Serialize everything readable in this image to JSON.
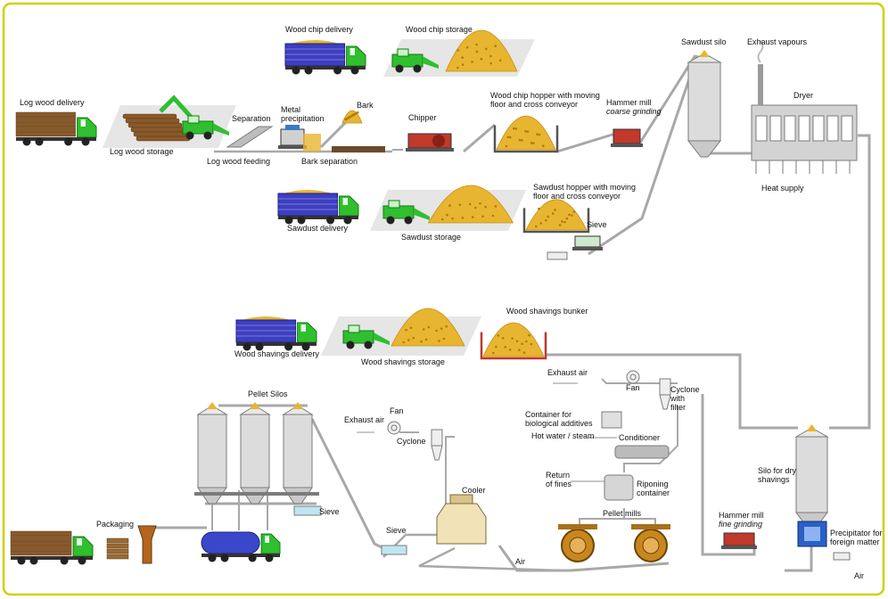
{
  "labels": [
    {
      "lines": [
        "Wood chip delivery"
      ]
    },
    {
      "lines": [
        "Wood chip storage"
      ]
    },
    {
      "lines": [
        "Sawdust silo"
      ]
    },
    {
      "lines": [
        "Exhaust vapours"
      ]
    },
    {
      "lines": [
        "Log wood delivery"
      ]
    },
    {
      "lines": [
        "Dryer"
      ]
    },
    {
      "lines": [
        "Hammer mill",
        "coarse grinding"
      ]
    },
    {
      "lines": [
        "Wood chip hopper with moving",
        "floor and cross conveyor"
      ]
    },
    {
      "lines": [
        "Separation"
      ]
    },
    {
      "lines": [
        "Metal",
        "precipitation"
      ]
    },
    {
      "lines": [
        "Bark"
      ]
    },
    {
      "lines": [
        "Chipper"
      ]
    },
    {
      "lines": [
        "Log wood storage"
      ]
    },
    {
      "lines": [
        "Log wood feeding"
      ]
    },
    {
      "lines": [
        "Bark separation"
      ]
    },
    {
      "lines": [
        "Heat supply"
      ]
    },
    {
      "lines": [
        "Sawdust hopper with moving",
        "floor and cross conveyor"
      ]
    },
    {
      "lines": [
        "Sieve"
      ]
    },
    {
      "lines": [
        "Sawdust delivery"
      ]
    },
    {
      "lines": [
        "Sawdust storage"
      ]
    },
    {
      "lines": [
        "Wood shavings bunker"
      ]
    },
    {
      "lines": [
        "Wood shavings delivery"
      ]
    },
    {
      "lines": [
        "Wood shavings storage"
      ]
    },
    {
      "lines": [
        "Exhaust air"
      ]
    },
    {
      "lines": [
        "Fan"
      ]
    },
    {
      "lines": [
        "Cyclone",
        "with",
        "filter"
      ]
    },
    {
      "lines": [
        "Pellet Silos"
      ]
    },
    {
      "lines": [
        "Container for",
        "biological additives"
      ]
    },
    {
      "lines": [
        "Fan"
      ]
    },
    {
      "lines": [
        "Exhaust air"
      ]
    },
    {
      "lines": [
        "Hot water / steam"
      ]
    },
    {
      "lines": [
        "Conditioner"
      ]
    },
    {
      "lines": [
        "Cyclone"
      ]
    },
    {
      "lines": [
        "Silo for dry",
        "shavings"
      ]
    },
    {
      "lines": [
        "Return",
        "of fines"
      ]
    },
    {
      "lines": [
        "Riponing",
        "container"
      ]
    },
    {
      "lines": [
        "Cooler"
      ]
    },
    {
      "lines": [
        "Pellet mills"
      ]
    },
    {
      "lines": [
        "Sieve"
      ]
    },
    {
      "lines": [
        "Packaging"
      ]
    },
    {
      "lines": [
        "Hammer mill",
        "fine grinding"
      ]
    },
    {
      "lines": [
        "Precipitator for",
        "foreign matter"
      ]
    },
    {
      "lines": [
        "Sieve"
      ]
    },
    {
      "lines": [
        "Air"
      ]
    },
    {
      "lines": [
        "Air"
      ]
    }
  ]
}
